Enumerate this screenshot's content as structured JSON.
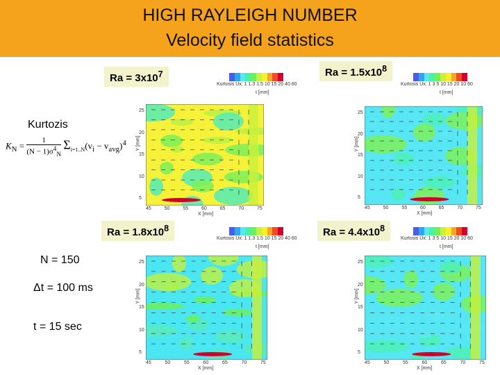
{
  "header": {
    "line1": "HIGH RAYLEIGH NUMBER",
    "line2": "Velocity field statistics",
    "background": "#f5a21c"
  },
  "left": {
    "kurtosis_label": "Kurtozis",
    "formula": {
      "lhs": "K",
      "sub": "N",
      "num": "1",
      "den": "(N − 1)σ",
      "sum_sub": "i=1..N",
      "term": "(v",
      "term_sub": "i",
      "minus": " − v",
      "avg": "avg",
      "close": ")",
      "pow": "4"
    },
    "params": {
      "n": "N = 150",
      "dt": "Δt = 100 ms",
      "t": "t = 15 sec"
    }
  },
  "panels": [
    {
      "ra_base": "Ra = 3x10",
      "ra_exp": "7",
      "legend_title": "Kurtosis Ux:",
      "legend_values": "1 1.3 1.5 10 15 20 40 60",
      "unit": "t [mm]",
      "xlabel": "X [mm]",
      "ylabel": "Y [mm]",
      "yticks": [
        "25",
        "20",
        "15",
        "10",
        "5"
      ],
      "xticks": [
        "45",
        "50",
        "55",
        "60",
        "65",
        "70",
        "75"
      ],
      "field_color": "yellow-green"
    },
    {
      "ra_base": "Ra = 1.5x10",
      "ra_exp": "8",
      "legend_title": "Kurtosis Ux:",
      "legend_values": "1 3 5 10 15 20 10 60",
      "unit": "t [mm]",
      "xlabel": "X [mm]",
      "ylabel": "Y [mm]",
      "yticks": [
        "25",
        "20",
        "15",
        "10",
        "5"
      ],
      "xticks": [
        "45",
        "50",
        "55",
        "60",
        "65",
        "70",
        "75"
      ],
      "field_color": "cyan"
    },
    {
      "ra_base": "Ra = 1.8x10",
      "ra_exp": "8",
      "legend_title": "Kurtosis Ux:",
      "legend_values": "1 1.3 1.5 10 15 20 40 60",
      "unit": "t [mm]",
      "xlabel": "X [mm]",
      "ylabel": "Y [mm]",
      "yticks": [
        "25",
        "20",
        "15",
        "10",
        "5"
      ],
      "xticks": [
        "45",
        "50",
        "55",
        "60",
        "65",
        "70",
        "75"
      ],
      "field_color": "cyan-green"
    },
    {
      "ra_base": "Ra = 4.4x10",
      "ra_exp": "8",
      "legend_title": "Kurtosis Ux:",
      "legend_values": "1 3 5 10 15 20 10 60",
      "unit": "t [mm]",
      "xlabel": "X [mm]",
      "ylabel": "Y [mm]",
      "yticks": [
        "25",
        "20",
        "15",
        "10",
        "5"
      ],
      "xticks": [
        "45",
        "50",
        "55",
        "60",
        "65",
        "70",
        "75"
      ],
      "field_color": "cyan"
    }
  ],
  "legend_colors": [
    "#4a5de8",
    "#2fa7f0",
    "#59e8f2",
    "#49f0a7",
    "#6cf05b",
    "#c8f03c",
    "#f8ef2c",
    "#f7a526",
    "#f14a25",
    "#d2002b"
  ]
}
